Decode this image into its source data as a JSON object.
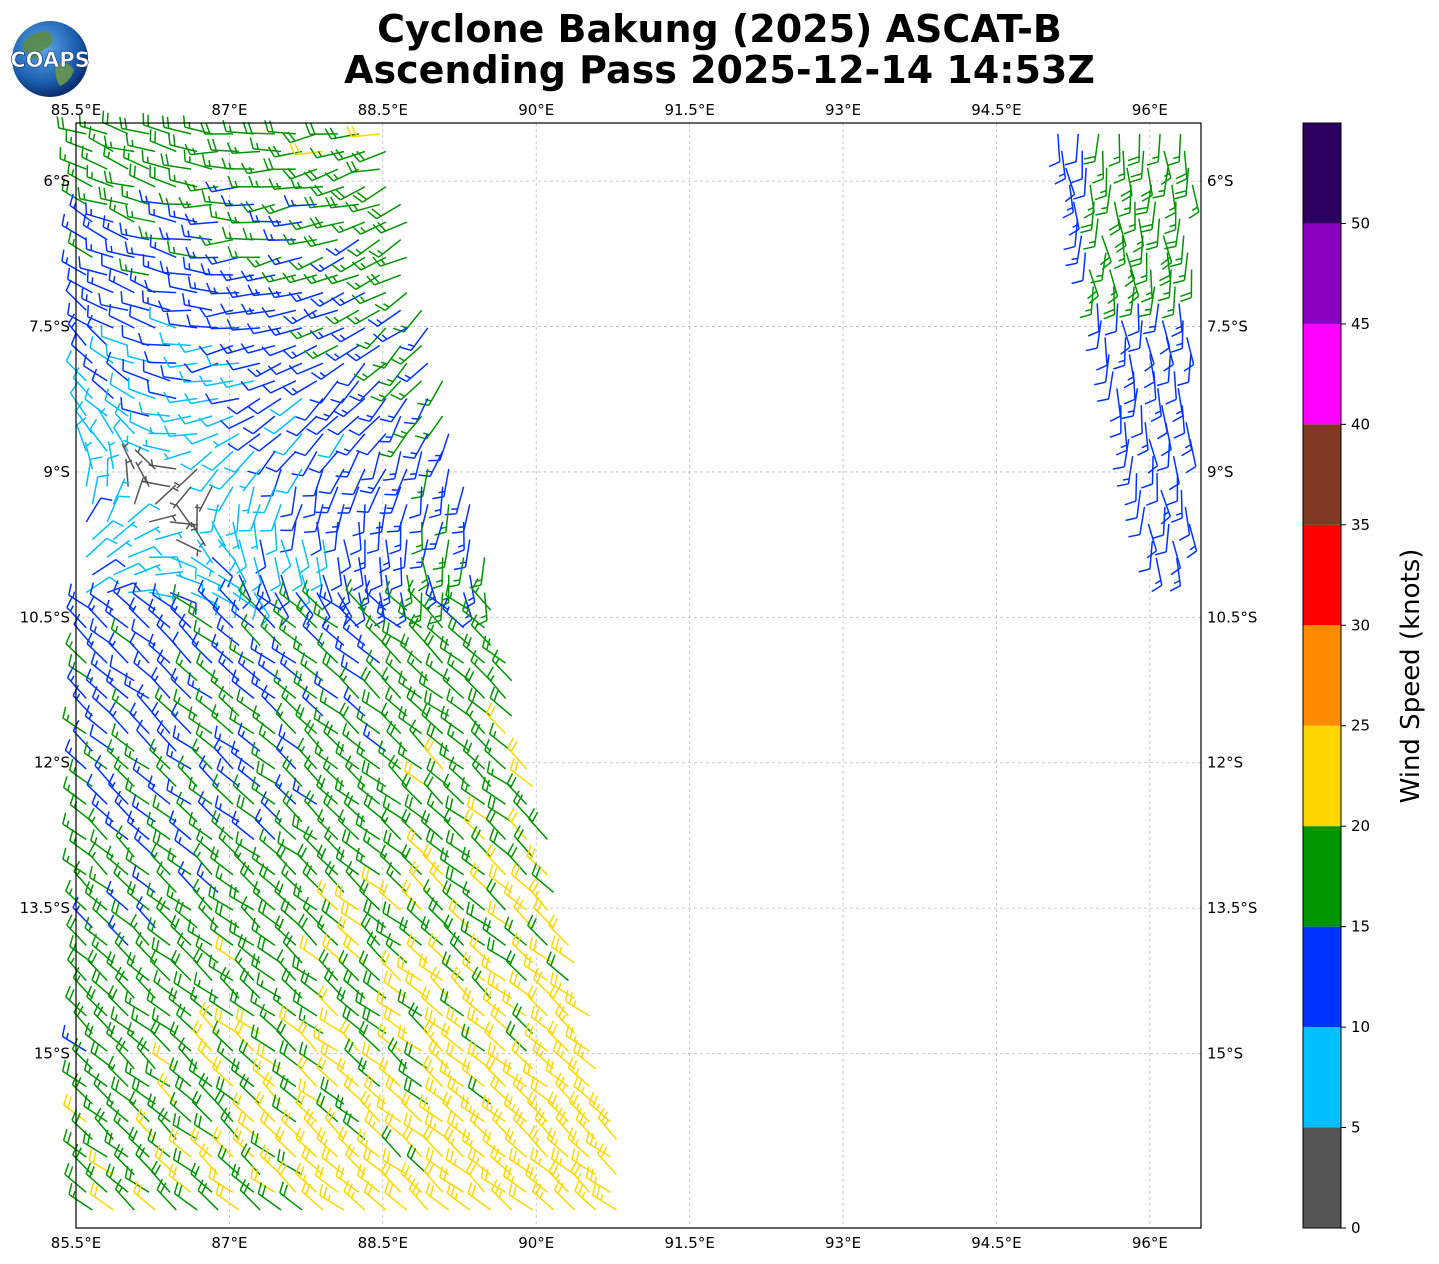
{
  "title": {
    "line1": "Cyclone Bakung (2025) ASCAT-B",
    "line2": "Ascending Pass 2025-12-14 14:53Z"
  },
  "logo": {
    "text": "COAPS"
  },
  "map": {
    "lon_range": [
      85.5,
      96.5
    ],
    "lat_range": [
      -16.8,
      -5.4
    ],
    "lon_ticks": [
      "85.5°E",
      "87°E",
      "88.5°E",
      "90°E",
      "91.5°E",
      "93°E",
      "94.5°E",
      "96°E"
    ],
    "lon_values": [
      85.5,
      87,
      88.5,
      90,
      91.5,
      93,
      94.5,
      96
    ],
    "lat_ticks": [
      "6°S",
      "7.5°S",
      "9°S",
      "10.5°S",
      "12°S",
      "13.5°S",
      "15°S"
    ],
    "lat_values": [
      -6,
      -7.5,
      -9,
      -10.5,
      -12,
      -13.5,
      -15
    ],
    "gridlines": true
  },
  "colorbar": {
    "label": "Wind Speed (knots)",
    "ticks": [
      "0",
      "5",
      "10",
      "15",
      "20",
      "25",
      "30",
      "35",
      "40",
      "45",
      "50"
    ],
    "bins": [
      {
        "min": 0,
        "max": 5,
        "color": "#555555"
      },
      {
        "min": 5,
        "max": 10,
        "color": "#00bfff"
      },
      {
        "min": 10,
        "max": 15,
        "color": "#0033ff"
      },
      {
        "min": 15,
        "max": 20,
        "color": "#009400"
      },
      {
        "min": 20,
        "max": 25,
        "color": "#ffd700"
      },
      {
        "min": 25,
        "max": 30,
        "color": "#ff8c00"
      },
      {
        "min": 30,
        "max": 35,
        "color": "#ff0000"
      },
      {
        "min": 35,
        "max": 40,
        "color": "#803a24"
      },
      {
        "min": 40,
        "max": 45,
        "color": "#ff00ff"
      },
      {
        "min": 45,
        "max": 50,
        "color": "#8a00bf"
      },
      {
        "min": 50,
        "max": 55,
        "color": "#2c005f"
      }
    ]
  }
}
